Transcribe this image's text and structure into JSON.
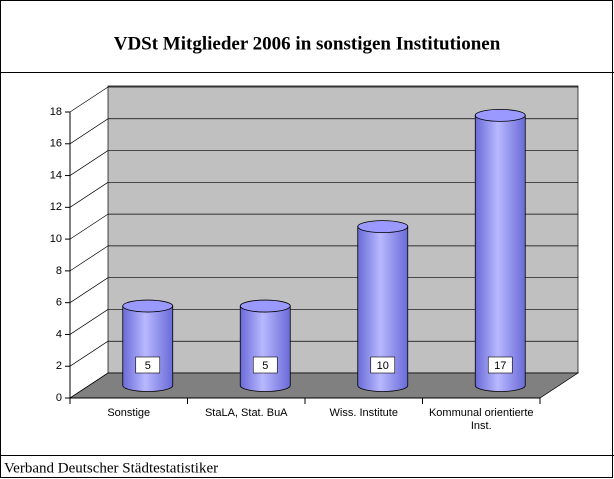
{
  "chart_data": {
    "type": "bar3d",
    "title": "VDSt Mitglieder 2006 in sonstigen Institutionen",
    "categories": [
      "Sonstige",
      "StaLA, Stat. BuA",
      "Wiss. Institute",
      "Kommunal orientierte Inst."
    ],
    "values": [
      5,
      5,
      10,
      17
    ],
    "color": "#9999ff",
    "ylim": [
      0,
      18
    ],
    "yticks": [
      0,
      2,
      4,
      6,
      8,
      10,
      12,
      14,
      16,
      18
    ],
    "grid": true,
    "footer": "Verband Deutscher Städtestatistiker"
  }
}
